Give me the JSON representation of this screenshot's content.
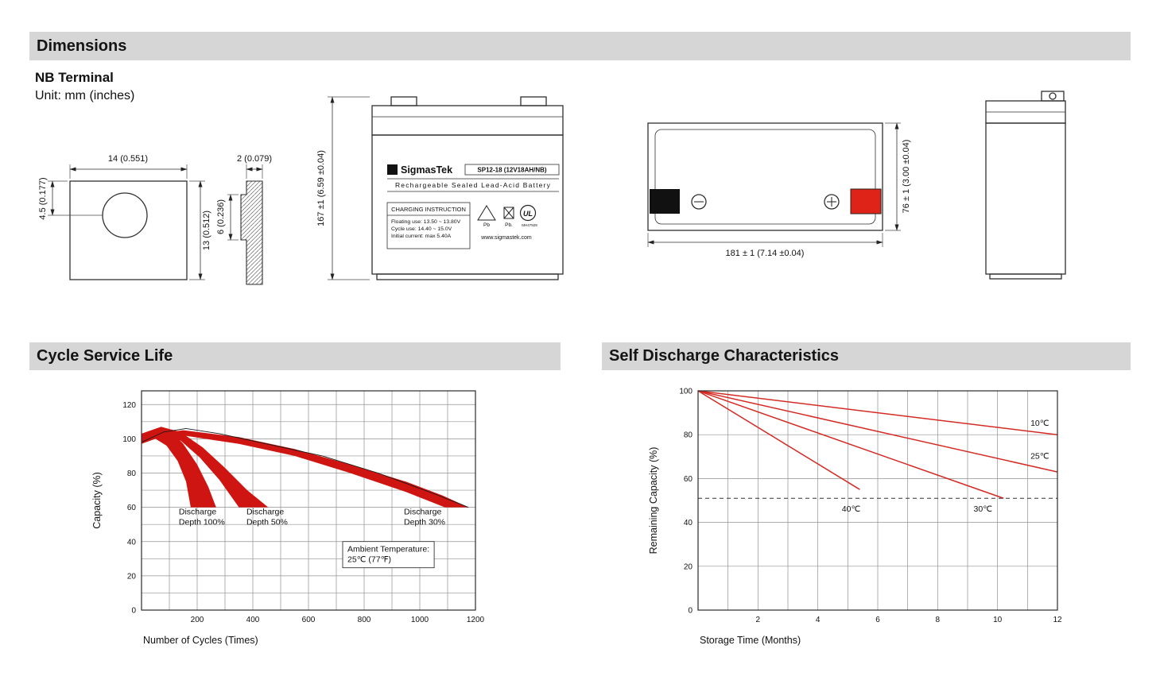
{
  "sections": {
    "dimensions": {
      "title": "Dimensions"
    },
    "cycle": {
      "title": "Cycle Service Life"
    },
    "self_discharge": {
      "title": "Self Discharge Characteristics"
    }
  },
  "terminal": {
    "heading": "NB Terminal",
    "unit": "Unit: mm (inches)",
    "dims": {
      "front_width": "14 (0.551)",
      "front_hole_offset": "4.5 (0.177)",
      "front_height": "13 (0.512)",
      "side_thickness": "2 (0.079)",
      "side_height": "6 (0.236)"
    }
  },
  "battery": {
    "height_dim": "167 ±1 (6.59 ±0.04)",
    "length_dim": "181 ± 1 (7.14 ±0.04)",
    "width_dim": "76 ± 1 (3.00 ±0.04)",
    "label": {
      "logo_sigma": "Σ",
      "brand": "SigmasTek",
      "model": "SP12-18 (12V18AH/NB)",
      "type_line": "Rechargeable Sealed Lead-Acid Battery",
      "charging_title": "CHARGING INSTRUCTION",
      "charging_lines": [
        "Floating use: 13.50 ~ 13.80V",
        "Cycle use: 14.40 ~ 15.0V",
        "Initial current: max 5.40A"
      ],
      "website": "www.sigmastek.com",
      "recycle_pb": "Pb",
      "bin_pb": "Pb.",
      "ul_text": "UL",
      "ul_code": "MH47929"
    }
  },
  "chart_data": [
    {
      "type": "area",
      "title": "Cycle Service Life",
      "xlabel": "Number of Cycles (Times)",
      "ylabel": "Capacity (%)",
      "xlim": [
        0,
        1200
      ],
      "ylim": [
        0,
        128
      ],
      "xticks": [
        200,
        400,
        600,
        800,
        1000,
        1200
      ],
      "yticks": [
        0,
        20,
        40,
        60,
        80,
        100,
        120
      ],
      "grid": {
        "x_step": 100,
        "y_step": 10
      },
      "colors": {
        "fill": "#cf1511",
        "outline": "#1a1a1a"
      },
      "bands": [
        {
          "name": "Discharge Depth 100%",
          "upper": [
            [
              0,
              101
            ],
            [
              60,
              106
            ],
            [
              110,
              104
            ],
            [
              150,
              97
            ],
            [
              200,
              85
            ],
            [
              240,
              72
            ],
            [
              268,
              60
            ]
          ],
          "lower": [
            [
              0,
              97
            ],
            [
              50,
              100
            ],
            [
              90,
              96
            ],
            [
              130,
              87
            ],
            [
              160,
              75
            ],
            [
              177,
              60
            ]
          ]
        },
        {
          "name": "Discharge Depth 50%",
          "upper": [
            [
              0,
              103
            ],
            [
              70,
              107
            ],
            [
              140,
              104
            ],
            [
              220,
              95
            ],
            [
              300,
              83
            ],
            [
              380,
              70
            ],
            [
              455,
              60
            ]
          ],
          "lower": [
            [
              0,
              99
            ],
            [
              70,
              103
            ],
            [
              140,
              99
            ],
            [
              210,
              89
            ],
            [
              280,
              76
            ],
            [
              350,
              60
            ]
          ]
        },
        {
          "name": "Discharge Depth 30%",
          "upper": [
            [
              0,
              102
            ],
            [
              150,
              105
            ],
            [
              350,
              101
            ],
            [
              550,
              94
            ],
            [
              750,
              85
            ],
            [
              950,
              75
            ],
            [
              1080,
              67
            ],
            [
              1175,
              60
            ]
          ],
          "lower": [
            [
              0,
              99
            ],
            [
              150,
              102
            ],
            [
              350,
              97
            ],
            [
              550,
              90
            ],
            [
              750,
              80
            ],
            [
              950,
              69
            ],
            [
              1090,
              60
            ]
          ]
        }
      ],
      "outline": [
        [
          0,
          98
        ],
        [
          80,
          104
        ],
        [
          160,
          106
        ],
        [
          280,
          103
        ],
        [
          450,
          97
        ],
        [
          650,
          90
        ],
        [
          850,
          80
        ],
        [
          1050,
          68
        ],
        [
          1175,
          60
        ]
      ],
      "annotations": [
        {
          "text": "Discharge\nDepth 100%",
          "x": 134,
          "y": 56
        },
        {
          "text": "Discharge\nDepth 50%",
          "x": 377,
          "y": 56
        },
        {
          "text": "Discharge\nDepth 30%",
          "x": 943,
          "y": 56
        },
        {
          "text": "Ambient Temperature:\n25℃ (77℉)",
          "x": 740,
          "y": 34,
          "box": true
        }
      ]
    },
    {
      "type": "line",
      "title": "Self Discharge Characteristics",
      "xlabel": "Storage Time (Months)",
      "ylabel": "Remaining Capacity (%)",
      "xlim": [
        0,
        12
      ],
      "ylim": [
        0,
        100
      ],
      "xticks": [
        2,
        4,
        6,
        8,
        10,
        12
      ],
      "yticks": [
        0,
        20,
        40,
        60,
        80,
        100
      ],
      "grid": {
        "x_step": 1,
        "y_step": 20
      },
      "colors": {
        "line": "#d42a24"
      },
      "series": [
        {
          "name": "10℃",
          "points": [
            [
              0,
              100
            ],
            [
              12,
              80
            ]
          ]
        },
        {
          "name": "25℃",
          "points": [
            [
              0,
              100
            ],
            [
              12,
              63
            ]
          ]
        },
        {
          "name": "30℃",
          "points": [
            [
              0,
              100
            ],
            [
              10.2,
              51
            ]
          ]
        },
        {
          "name": "40℃",
          "points": [
            [
              0,
              100
            ],
            [
              5.4,
              55
            ]
          ]
        }
      ],
      "dashed_line_y": 51,
      "annotations": [
        {
          "text": "10℃",
          "x": 11.1,
          "y": 84
        },
        {
          "text": "25℃",
          "x": 11.1,
          "y": 69
        },
        {
          "text": "40℃",
          "x": 4.8,
          "y": 45
        },
        {
          "text": "30℃",
          "x": 9.2,
          "y": 45
        }
      ]
    }
  ]
}
